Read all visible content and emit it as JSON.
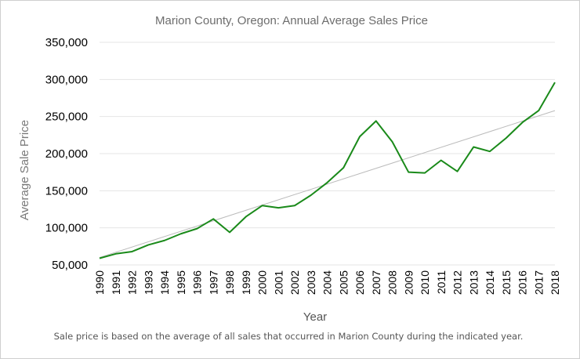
{
  "chart_data": {
    "type": "line",
    "title": "Marion County, Oregon: Annual Average Sales Price",
    "xlabel": "Year",
    "ylabel": "Average Sale Price",
    "footnote": "Sale price is based on the average of all sales that occurred in Marion County during the indicated year.",
    "ylim": [
      50000,
      350000
    ],
    "y_ticks": [
      50000,
      100000,
      150000,
      200000,
      250000,
      300000,
      350000
    ],
    "y_tick_labels": [
      "50,000",
      "100,000",
      "150,000",
      "200,000",
      "250,000",
      "300,000",
      "350,000"
    ],
    "grid": true,
    "legend": "none",
    "categories": [
      "1990",
      "1991",
      "1992",
      "1993",
      "1994",
      "1995",
      "1996",
      "1997",
      "1998",
      "1999",
      "2000",
      "2001",
      "2002",
      "2003",
      "2004",
      "2005",
      "2006",
      "2007",
      "2008",
      "2009",
      "2010",
      "2011",
      "2012",
      "2013",
      "2014",
      "2015",
      "2016",
      "2017",
      "2018"
    ],
    "series": [
      {
        "color": "#1a8a1a",
        "values": [
          59000,
          65000,
          68000,
          77000,
          83000,
          92000,
          99000,
          112000,
          94000,
          115000,
          130000,
          127000,
          130000,
          144000,
          161000,
          181000,
          223000,
          244000,
          216000,
          175000,
          174000,
          191000,
          176000,
          209000,
          203000,
          221000,
          242000,
          258000,
          296000
        ]
      }
    ],
    "trendline": {
      "color": "#bbbbbb",
      "from": [
        1990,
        60000
      ],
      "to": [
        2018,
        258000
      ]
    }
  }
}
